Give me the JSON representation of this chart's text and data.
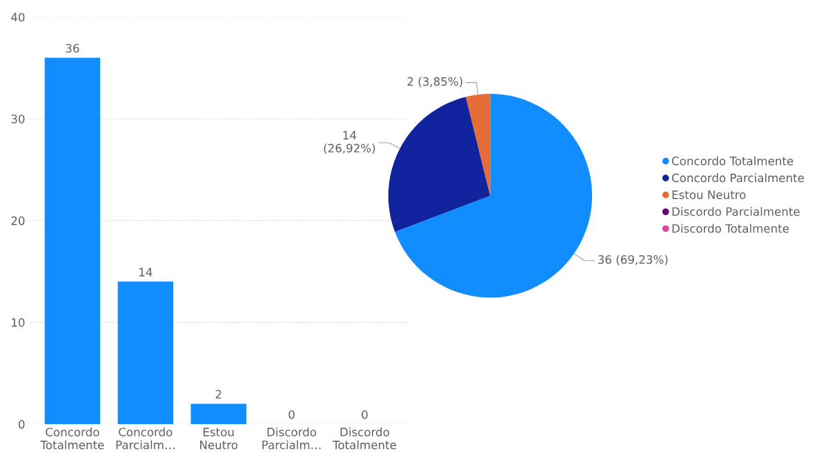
{
  "chart_data": [
    {
      "type": "bar",
      "categories": [
        "Concordo\nTotalmente",
        "Concordo\nParcialm…",
        "Estou\nNeutro",
        "Discordo\nParcialm…",
        "Discordo\nTotalmente"
      ],
      "values": [
        36,
        14,
        2,
        0,
        0
      ],
      "color": "#118dff",
      "ylim": [
        0,
        40
      ],
      "yticks": [
        0,
        10,
        20,
        30,
        40
      ],
      "grid": "y",
      "data_labels": true
    },
    {
      "type": "pie",
      "categories": [
        "Concordo Totalmente",
        "Concordo Parcialmente",
        "Estou Neutro",
        "Discordo Parcialmente",
        "Discordo Totalmente"
      ],
      "values": [
        36,
        14,
        2,
        0,
        0
      ],
      "colors": [
        "#118dff",
        "#12239e",
        "#e66c37",
        "#6b007b",
        "#e044a7"
      ],
      "value_labels": [
        "36 (69,23%)",
        "14\n(26,92%)",
        "2 (3,85%)",
        null,
        null
      ],
      "legend": "right"
    }
  ]
}
